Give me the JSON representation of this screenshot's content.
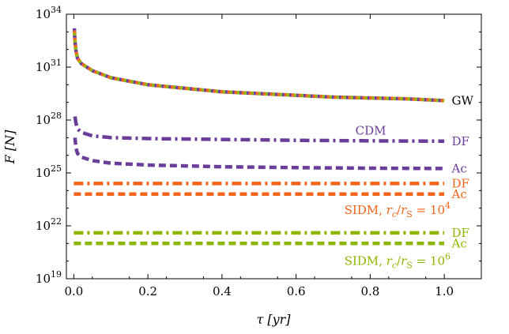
{
  "chart_data": {
    "type": "line",
    "xlabel": "τ [yr]",
    "ylabel": "F [N]",
    "xlim": [
      -0.02,
      1.1
    ],
    "ylim_log10": [
      19,
      34
    ],
    "yscale": "log",
    "grid": false,
    "x_ticks": [
      0.0,
      0.2,
      0.4,
      0.6,
      0.8,
      1.0
    ],
    "x_tick_labels": [
      "0.0",
      "0.2",
      "0.4",
      "0.6",
      "0.8",
      "1.0"
    ],
    "y_ticks_log10": [
      19,
      22,
      25,
      28,
      31,
      34
    ],
    "y_tick_labels": [
      "10^19",
      "10^22",
      "10^25",
      "10^28",
      "10^31",
      "10^34"
    ],
    "colors": {
      "cdm": "#6b3d9a",
      "sidm4": "#f26419",
      "sidm6": "#8db600",
      "gw_dots": [
        "#6b3d9a",
        "#f26419",
        "#8db600"
      ]
    },
    "series": [
      {
        "name": "GW",
        "style": "dotted-multicolor",
        "x": [
          0.0015,
          0.003,
          0.006,
          0.01,
          0.02,
          0.05,
          0.1,
          0.2,
          0.3,
          0.4,
          0.5,
          0.6,
          0.7,
          0.8,
          0.9,
          1.0
        ],
        "log10_y": [
          33.2,
          32.5,
          31.9,
          31.5,
          31.2,
          30.8,
          30.4,
          30.0,
          29.8,
          29.6,
          29.5,
          29.4,
          29.3,
          29.25,
          29.2,
          29.1
        ]
      },
      {
        "name": "DF",
        "style": "dashdot",
        "color_key": "cdm",
        "x": [
          0.003,
          0.006,
          0.01,
          0.02,
          0.05,
          0.1,
          0.2,
          0.4,
          0.6,
          0.8,
          1.0
        ],
        "log10_y": [
          28.2,
          27.8,
          27.5,
          27.3,
          27.1,
          27.0,
          26.95,
          26.9,
          26.85,
          26.82,
          26.8
        ]
      },
      {
        "name": "Ac",
        "style": "dashed",
        "color_key": "cdm",
        "x": [
          0.003,
          0.006,
          0.01,
          0.02,
          0.05,
          0.1,
          0.2,
          0.4,
          0.6,
          0.8,
          1.0
        ],
        "log10_y": [
          27.0,
          26.4,
          26.1,
          25.9,
          25.7,
          25.55,
          25.45,
          25.35,
          25.3,
          25.27,
          25.25
        ]
      },
      {
        "name": "DF",
        "style": "dashdot",
        "color_key": "sidm4",
        "x": [
          0.0,
          1.0
        ],
        "log10_y": [
          24.4,
          24.4
        ]
      },
      {
        "name": "Ac",
        "style": "dashed",
        "color_key": "sidm4",
        "x": [
          0.0,
          1.0
        ],
        "log10_y": [
          23.8,
          23.8
        ]
      },
      {
        "name": "DF",
        "style": "dashdot",
        "color_key": "sidm6",
        "x": [
          0.0,
          1.0
        ],
        "log10_y": [
          21.6,
          21.6
        ]
      },
      {
        "name": "Ac",
        "style": "dashed",
        "color_key": "sidm6",
        "x": [
          0.0,
          1.0
        ],
        "log10_y": [
          21.0,
          21.0
        ]
      }
    ],
    "annotations": [
      {
        "text": "GW",
        "x": 1.02,
        "log10_y": 29.1,
        "color_key": "black"
      },
      {
        "text": "CDM",
        "x": 0.76,
        "log10_y": 27.4,
        "color_key": "cdm"
      },
      {
        "text": "DF",
        "x": 1.02,
        "log10_y": 26.8,
        "color_key": "cdm"
      },
      {
        "text": "Ac",
        "x": 1.02,
        "log10_y": 25.25,
        "color_key": "cdm"
      },
      {
        "text": "DF",
        "x": 1.02,
        "log10_y": 24.4,
        "color_key": "sidm4"
      },
      {
        "text": "Ac",
        "x": 1.02,
        "log10_y": 23.8,
        "color_key": "sidm4"
      },
      {
        "text": "SIDM, r_c/r_S = 10^4",
        "x": 0.73,
        "log10_y": 22.9,
        "color_key": "sidm4"
      },
      {
        "text": "DF",
        "x": 1.02,
        "log10_y": 21.6,
        "color_key": "sidm6"
      },
      {
        "text": "Ac",
        "x": 1.02,
        "log10_y": 21.0,
        "color_key": "sidm6"
      },
      {
        "text": "SIDM, r_c/r_S = 10^6",
        "x": 0.73,
        "log10_y": 20.0,
        "color_key": "sidm6"
      }
    ]
  }
}
